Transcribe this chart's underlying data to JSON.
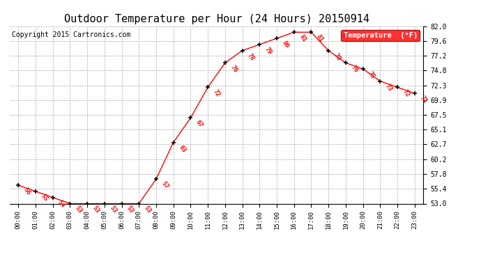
{
  "title": "Outdoor Temperature per Hour (24 Hours) 20150914",
  "copyright": "Copyright 2015 Cartronics.com",
  "legend_label": "Temperature  (°F)",
  "hours": [
    0,
    1,
    2,
    3,
    4,
    5,
    6,
    7,
    8,
    9,
    10,
    11,
    12,
    13,
    14,
    15,
    16,
    17,
    18,
    19,
    20,
    21,
    22,
    23
  ],
  "temps": [
    56,
    55,
    54,
    53,
    53,
    53,
    53,
    53,
    57,
    63,
    67,
    72,
    76,
    78,
    79,
    80,
    81,
    81,
    78,
    76,
    75,
    73,
    72,
    71
  ],
  "ylim": [
    53.0,
    82.0
  ],
  "yticks": [
    53.0,
    55.4,
    57.8,
    60.2,
    62.7,
    65.1,
    67.5,
    69.9,
    72.3,
    74.8,
    77.2,
    79.6,
    82.0
  ],
  "line_color": "red",
  "marker_color": "black",
  "label_color": "red",
  "bg_color": "#ffffff",
  "grid_color": "#aaaaaa",
  "title_fontsize": 11,
  "copyright_fontsize": 7,
  "label_fontsize": 6.5
}
